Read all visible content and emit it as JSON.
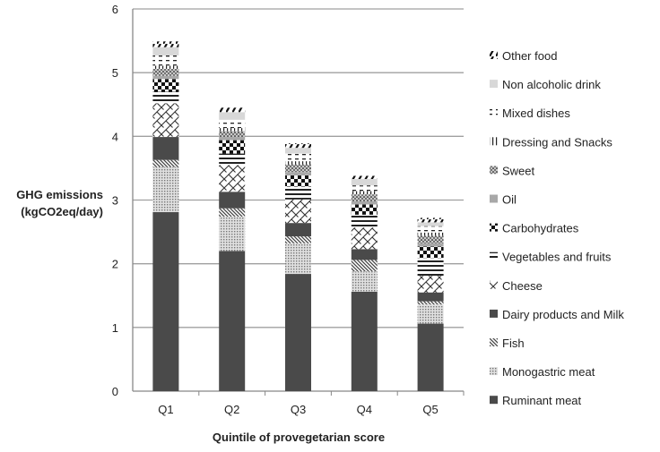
{
  "chart_data": {
    "type": "bar",
    "stacked": true,
    "title": "",
    "xlabel": "Quintile of provegetarian score",
    "ylabel": [
      "GHG emissions",
      "(kgCO2eq/day)"
    ],
    "ylim": [
      0,
      6
    ],
    "yticks": [
      0,
      1,
      2,
      3,
      4,
      5,
      6
    ],
    "grid": true,
    "legend_placement": "right",
    "categories": [
      "Q1",
      "Q2",
      "Q3",
      "Q4",
      "Q5"
    ],
    "series": [
      {
        "name": "Ruminant meat",
        "pattern": "solid-dark",
        "values": [
          2.81,
          2.2,
          1.84,
          1.56,
          1.06
        ]
      },
      {
        "name": "Monogastric meat",
        "pattern": "dots",
        "values": [
          0.71,
          0.54,
          0.48,
          0.32,
          0.3
        ]
      },
      {
        "name": "Fish",
        "pattern": "diagonal-lines",
        "values": [
          0.11,
          0.13,
          0.11,
          0.18,
          0.05
        ]
      },
      {
        "name": "Dairy products and Milk",
        "pattern": "solid-dark",
        "values": [
          0.36,
          0.26,
          0.21,
          0.17,
          0.14
        ]
      },
      {
        "name": "Cheese",
        "pattern": "brick-diagonal",
        "values": [
          0.53,
          0.42,
          0.37,
          0.34,
          0.26
        ]
      },
      {
        "name": "Vegetables and fruits",
        "pattern": "horizontal-lines",
        "values": [
          0.18,
          0.18,
          0.2,
          0.2,
          0.28
        ]
      },
      {
        "name": "Carbohydrates",
        "pattern": "checker",
        "values": [
          0.2,
          0.21,
          0.18,
          0.16,
          0.18
        ]
      },
      {
        "name": "Oil",
        "pattern": "solid-grey",
        "values": [
          0.05,
          0.05,
          0.05,
          0.05,
          0.05
        ]
      },
      {
        "name": "Sweet",
        "pattern": "diamond-grid",
        "values": [
          0.11,
          0.09,
          0.12,
          0.11,
          0.12
        ]
      },
      {
        "name": "Dressing and Snacks",
        "pattern": "vertical-lines",
        "values": [
          0.05,
          0.05,
          0.05,
          0.05,
          0.05
        ]
      },
      {
        "name": "Mixed dishes",
        "pattern": "dashes",
        "values": [
          0.16,
          0.13,
          0.12,
          0.09,
          0.1
        ]
      },
      {
        "name": "Non alcoholic drink",
        "pattern": "solid-light",
        "values": [
          0.13,
          0.12,
          0.09,
          0.1,
          0.06
        ]
      },
      {
        "name": "Other food",
        "pattern": "wide-diagonal",
        "values": [
          0.09,
          0.07,
          0.07,
          0.05,
          0.07
        ]
      }
    ]
  }
}
